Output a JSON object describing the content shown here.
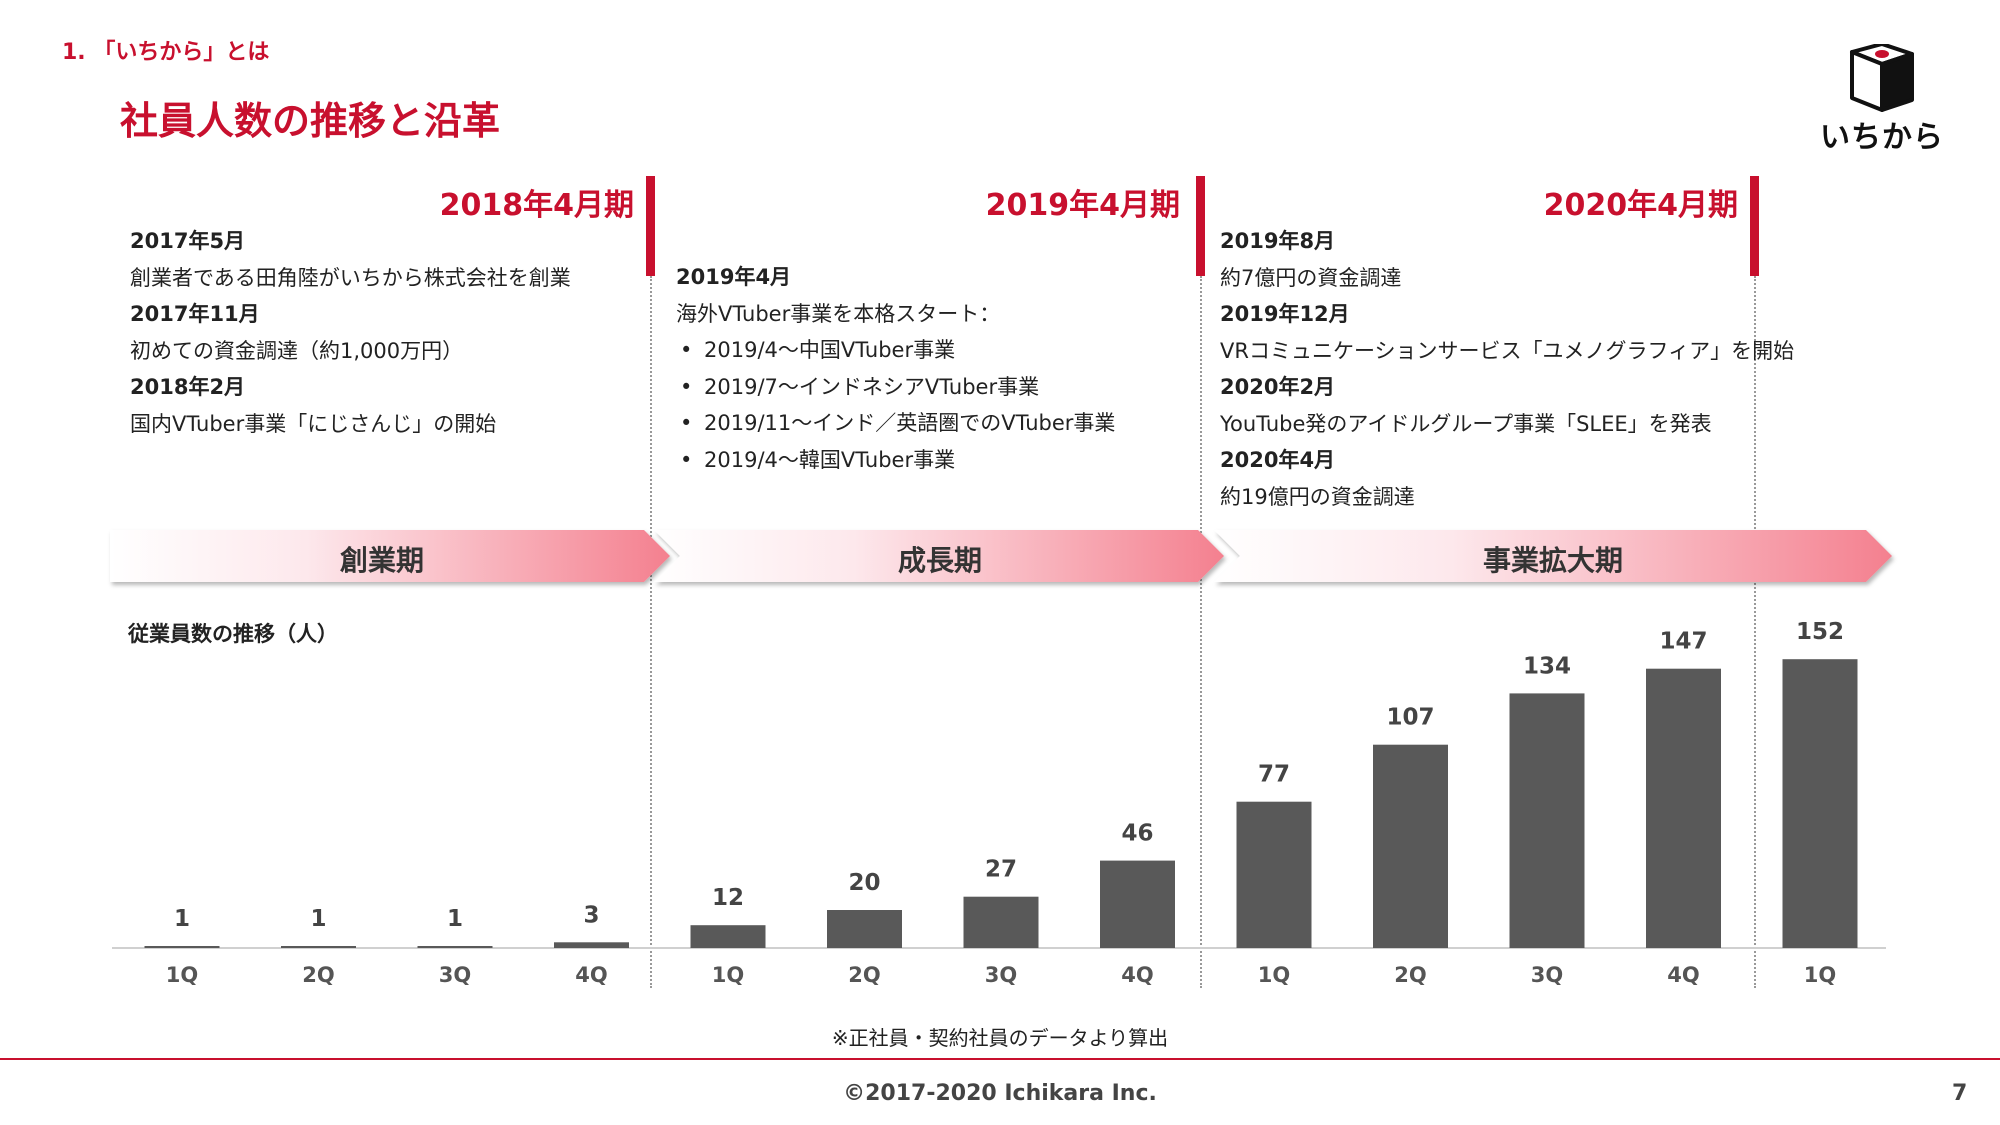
{
  "header": {
    "section": "1. 「いちから」とは",
    "title": "社員人数の推移と沿革",
    "logo_text": "いちから"
  },
  "periods": [
    {
      "title": "2018年4月期",
      "phase": "創業期",
      "events": [
        {
          "type": "heading",
          "text": "2017年5月"
        },
        {
          "type": "text",
          "text": "創業者である田角陸がいちから株式会社を創業"
        },
        {
          "type": "heading",
          "text": "2017年11月"
        },
        {
          "type": "text",
          "text": "初めての資金調達（約1,000万円）"
        },
        {
          "type": "heading",
          "text": "2018年2月"
        },
        {
          "type": "text",
          "text": "国内VTuber事業「にじさんじ」の開始"
        }
      ]
    },
    {
      "title": "2019年4月期",
      "phase": "成長期",
      "events": [
        {
          "type": "heading",
          "text": "2019年4月"
        },
        {
          "type": "text",
          "text": "海外VTuber事業を本格スタート："
        },
        {
          "type": "bullet",
          "text": "2019/4～中国VTuber事業"
        },
        {
          "type": "bullet",
          "text": "2019/7～インドネシアVTuber事業"
        },
        {
          "type": "bullet",
          "text": "2019/11～インド／英語圏でのVTuber事業"
        },
        {
          "type": "bullet",
          "text": "2019/4～韓国VTuber事業"
        }
      ]
    },
    {
      "title": "2020年4月期",
      "phase": "事業拡大期",
      "events": [
        {
          "type": "heading",
          "text": "2019年8月"
        },
        {
          "type": "text",
          "text": "約7億円の資金調達"
        },
        {
          "type": "heading",
          "text": "2019年12月"
        },
        {
          "type": "text",
          "text": "VRコミュニケーションサービス「ユメノグラフィア」を開始"
        },
        {
          "type": "heading",
          "text": "2020年2月"
        },
        {
          "type": "text",
          "text": "YouTube発のアイドルグループ事業「SLEE」を発表"
        },
        {
          "type": "heading",
          "text": "2020年4月"
        },
        {
          "type": "text",
          "text": "約19億円の資金調達"
        }
      ]
    }
  ],
  "chart_data": {
    "type": "bar",
    "title": "従業員数の推移（人）",
    "categories": [
      "1Q",
      "2Q",
      "3Q",
      "4Q",
      "1Q",
      "2Q",
      "3Q",
      "4Q",
      "1Q",
      "2Q",
      "3Q",
      "4Q",
      "1Q"
    ],
    "values": [
      1,
      1,
      1,
      3,
      12,
      20,
      27,
      46,
      77,
      107,
      134,
      147,
      152
    ],
    "ylim": [
      0,
      160
    ],
    "grid": false,
    "bar_color": "#595959"
  },
  "footnote": "※正社員・契約社員のデータより算出",
  "footer": {
    "copyright": "©2017-2020 Ichikara Inc.",
    "page": "7"
  },
  "colors": {
    "accent": "#c8102e",
    "arrow_light": "#fde8ec",
    "arrow_dark": "#f4808f"
  }
}
